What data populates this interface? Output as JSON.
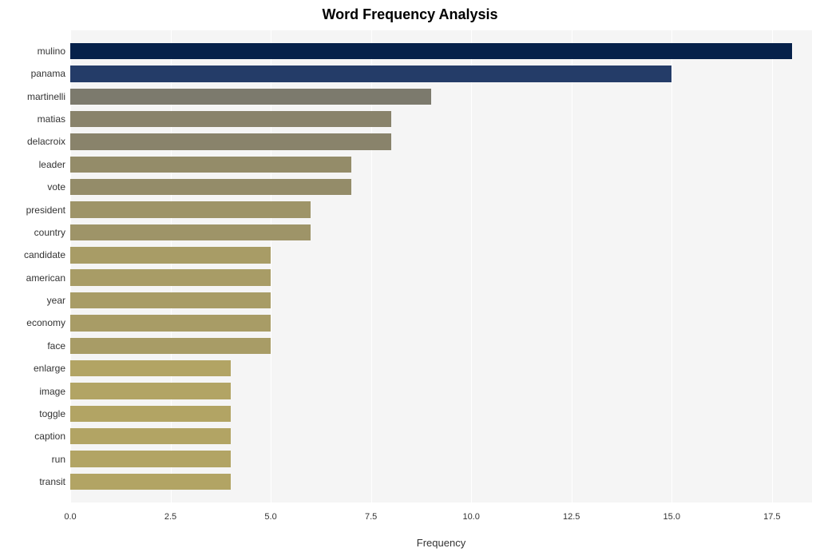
{
  "chart": {
    "type": "bar-horizontal",
    "title": "Word Frequency Analysis",
    "title_fontsize": 18,
    "title_fontweight": "bold",
    "xlabel": "Frequency",
    "xlabel_fontsize": 13,
    "ylabel_fontsize": 12,
    "xtick_fontsize": 11,
    "background_color": "#ffffff",
    "plot_background": "#f5f5f5",
    "grid_color": "#ffffff",
    "xlim": [
      0.0,
      18.5
    ],
    "xticks": [
      0.0,
      2.5,
      5.0,
      7.5,
      10.0,
      12.5,
      15.0,
      17.5
    ],
    "xtick_labels": [
      "0.0",
      "2.5",
      "5.0",
      "7.5",
      "10.0",
      "12.5",
      "15.0",
      "17.5"
    ],
    "bar_height_ratio": 0.72,
    "categories": [
      "mulino",
      "panama",
      "martinelli",
      "matias",
      "delacroix",
      "leader",
      "vote",
      "president",
      "country",
      "candidate",
      "american",
      "year",
      "economy",
      "face",
      "enlarge",
      "image",
      "toggle",
      "caption",
      "run",
      "transit"
    ],
    "values": [
      18,
      15,
      9,
      8,
      8,
      7,
      7,
      6,
      6,
      5,
      5,
      5,
      5,
      5,
      4,
      4,
      4,
      4,
      4,
      4
    ],
    "bar_colors": [
      "#06214a",
      "#243c68",
      "#7c7a6d",
      "#89836b",
      "#89836b",
      "#948c69",
      "#948c69",
      "#9e9468",
      "#9e9468",
      "#a89c66",
      "#a89c66",
      "#a89c66",
      "#a89c66",
      "#a89c66",
      "#b2a464",
      "#b2a464",
      "#b2a464",
      "#b2a464",
      "#b2a464",
      "#b2a464"
    ]
  }
}
